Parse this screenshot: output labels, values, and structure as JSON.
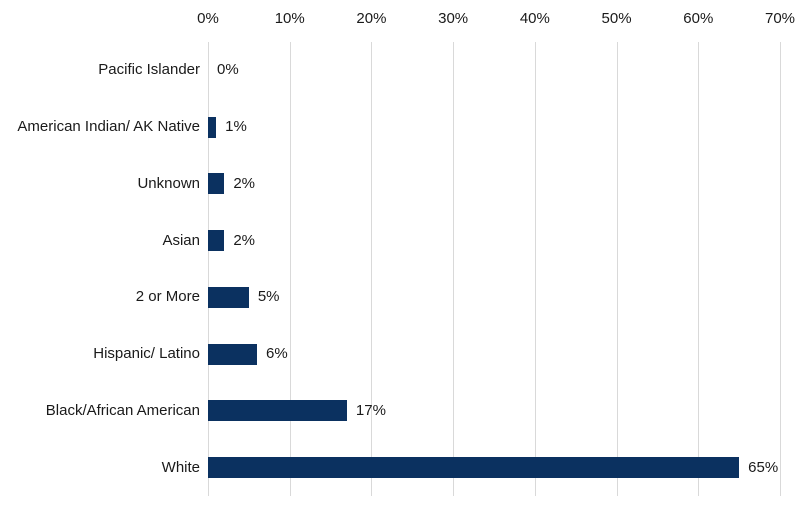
{
  "chart_data": {
    "type": "bar",
    "orientation": "horizontal",
    "title": "",
    "xlabel": "",
    "ylabel": "",
    "categories": [
      "Pacific Islander",
      "American Indian/ AK Native",
      "Unknown",
      "Asian",
      "2 or More",
      "Hispanic/ Latino",
      "Black/African American",
      "White"
    ],
    "values": [
      0,
      1,
      2,
      2,
      5,
      6,
      17,
      65
    ],
    "value_labels": [
      "0%",
      "1%",
      "2%",
      "2%",
      "5%",
      "6%",
      "17%",
      "65%"
    ],
    "x_tick_values": [
      0,
      10,
      20,
      30,
      40,
      50,
      60,
      70
    ],
    "x_tick_labels": [
      "0%",
      "10%",
      "20%",
      "30%",
      "40%",
      "50%",
      "60%",
      "70%"
    ],
    "xlim": [
      0,
      70
    ],
    "grid": "vertical-only",
    "legend": "none",
    "axis_position": "top",
    "colors": {
      "bar": "#0b3160",
      "gridline": "#d9d9d9",
      "text": "#1a1a1a",
      "background": "#ffffff"
    }
  }
}
